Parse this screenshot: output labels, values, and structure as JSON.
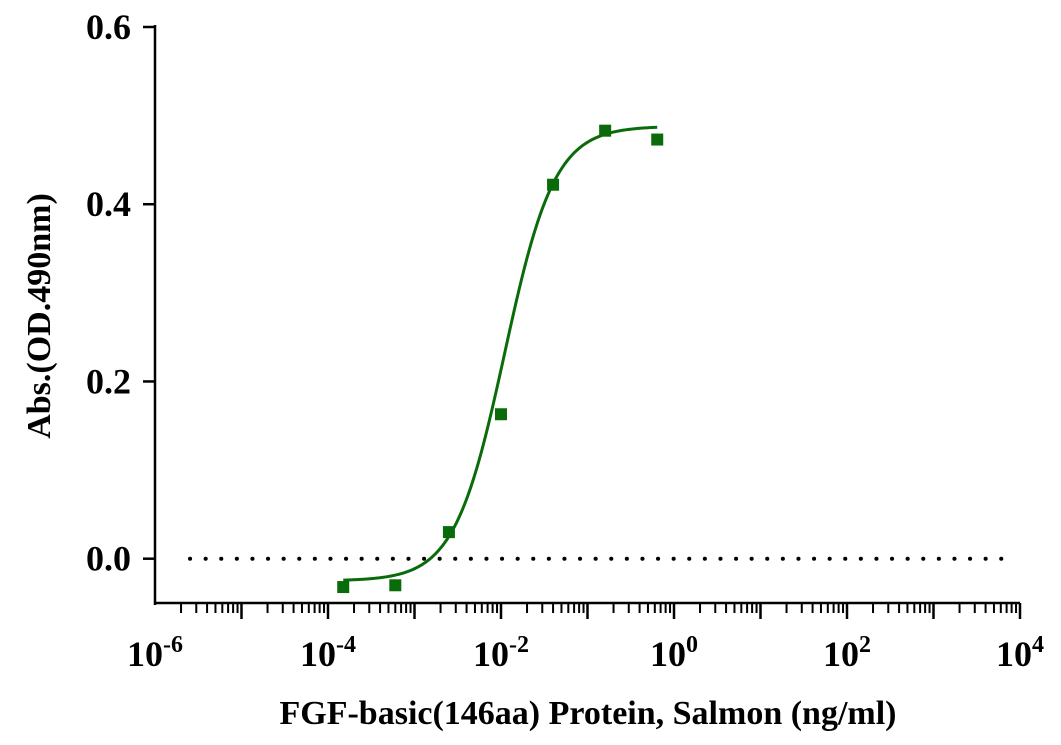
{
  "chart_data": {
    "type": "scatter",
    "title": "",
    "xlabel": "FGF-basic(146aa) Protein, Salmon (ng/ml)",
    "ylabel": "Abs.(OD.490nm)",
    "x_scale": "log",
    "xlim": [
      1e-06,
      10000
    ],
    "ylim": [
      -0.05,
      0.6
    ],
    "x_tick_labels": [
      {
        "base": "10",
        "exp": "-6"
      },
      {
        "base": "10",
        "exp": "-4"
      },
      {
        "base": "10",
        "exp": "-2"
      },
      {
        "base": "10",
        "exp": "0"
      },
      {
        "base": "10",
        "exp": "2"
      },
      {
        "base": "10",
        "exp": "4"
      }
    ],
    "y_tick_labels": [
      "0.0",
      "0.2",
      "0.4",
      "0.6"
    ],
    "y_ticks": [
      0.0,
      0.2,
      0.4,
      0.6
    ],
    "baseline": 0.0,
    "grid": false,
    "legend": "none",
    "series": [
      {
        "color": "#0a6b0a",
        "marker": "square",
        "points": [
          {
            "x": 0.00015,
            "y": -0.032
          },
          {
            "x": 0.0006,
            "y": -0.03
          },
          {
            "x": 0.0025,
            "y": 0.03
          },
          {
            "x": 0.01,
            "y": 0.163
          },
          {
            "x": 0.04,
            "y": 0.422
          },
          {
            "x": 0.16,
            "y": 0.483
          },
          {
            "x": 0.64,
            "y": 0.473
          }
        ],
        "fit_curve": {
          "model": "4PL",
          "bottom": -0.025,
          "top": 0.488,
          "ec50": 0.011,
          "hill": 1.5,
          "x_range": [
            0.00015,
            0.64
          ]
        }
      }
    ]
  }
}
